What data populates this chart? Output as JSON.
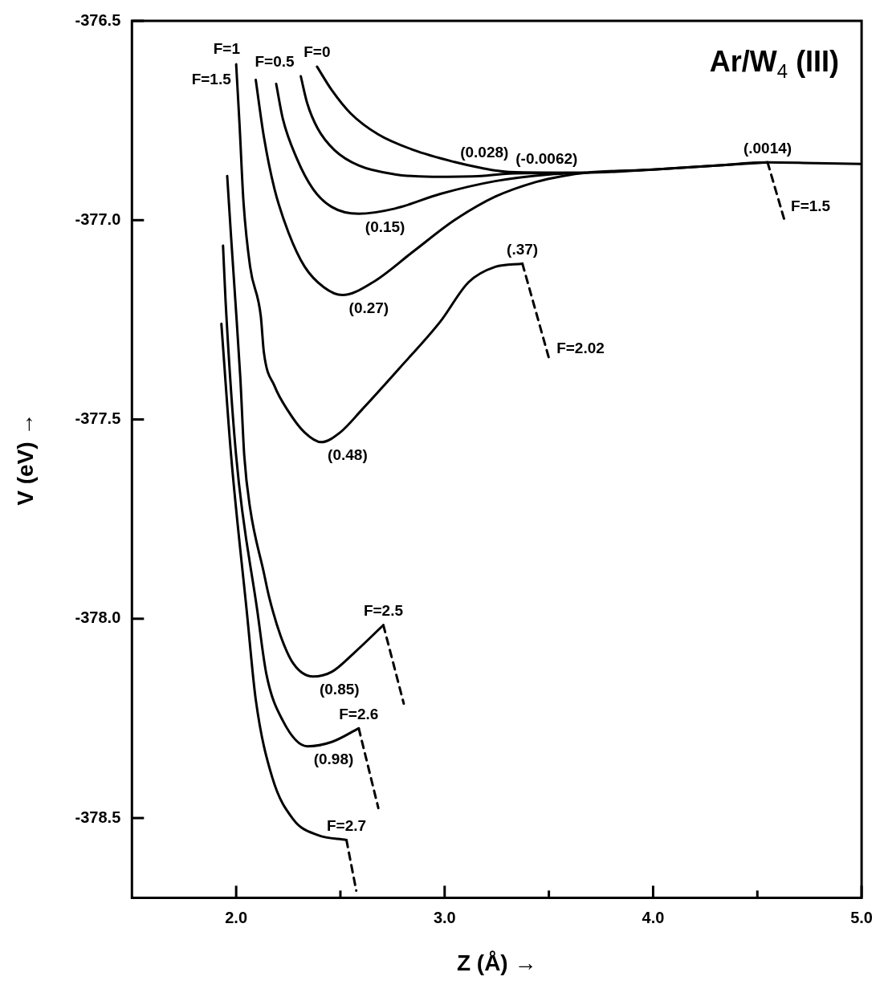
{
  "chart_data": {
    "type": "line",
    "title": "Ar/W$_{4}$ (III)",
    "xlabel": "Z (Å) →",
    "ylabel": "V (eV) →",
    "xlim": [
      1.5,
      5.0
    ],
    "ylim": [
      -378.7,
      -376.5
    ],
    "xticks": [
      {
        "value": 2,
        "label": "2.0"
      },
      {
        "value": 2.5,
        "label": null
      },
      {
        "value": 3,
        "label": "3.0"
      },
      {
        "value": 3.5,
        "label": null
      },
      {
        "value": 4,
        "label": "4.0"
      },
      {
        "value": 4.5,
        "label": null
      },
      {
        "value": 5,
        "label": "5.0"
      }
    ],
    "yticks": [
      -376.5,
      {
        "value": -377,
        "label": "-377.0"
      },
      -377.5,
      {
        "value": -378,
        "label": "-378.0"
      },
      -378.5
    ],
    "marker": "none",
    "line_style": "solid",
    "series": [
      {
        "color": "#000000",
        "x": [
          2.388,
          2.459,
          2.549,
          2.682,
          2.851,
          3.047,
          3.176,
          3.31,
          3.675,
          4.0,
          4.302,
          4.549,
          4.773,
          5.0
        ],
        "values": [
          -376.615,
          -376.674,
          -376.732,
          -376.785,
          -376.824,
          -376.854,
          -376.869,
          -376.879,
          -376.881,
          -376.873,
          -376.863,
          -376.855,
          -376.857,
          -376.859
        ]
      },
      {
        "color": "#000000",
        "x": [
          2.31,
          2.341,
          2.392,
          2.471,
          2.588,
          2.761,
          2.941,
          3.176,
          3.31,
          3.675
        ],
        "values": [
          -376.639,
          -376.707,
          -376.771,
          -376.824,
          -376.863,
          -376.885,
          -376.891,
          -376.889,
          -376.883,
          -376.881
        ]
      },
      {
        "color": "#000000",
        "x": [
          2.192,
          2.224,
          2.29,
          2.369,
          2.459,
          2.588,
          2.761,
          2.98,
          3.243,
          3.506,
          3.675
        ],
        "values": [
          -376.658,
          -376.746,
          -376.844,
          -376.922,
          -376.967,
          -376.984,
          -376.971,
          -376.934,
          -376.902,
          -376.885,
          -376.881
        ]
      },
      {
        "color": "#000000",
        "x": [
          2.094,
          2.133,
          2.184,
          2.251,
          2.329,
          2.42,
          2.51,
          2.655,
          2.851,
          3.047,
          3.243,
          3.439,
          3.569,
          3.675,
          4.0,
          4.302,
          4.549
        ],
        "values": [
          -376.648,
          -376.791,
          -376.922,
          -377.031,
          -377.117,
          -377.168,
          -377.188,
          -377.156,
          -377.078,
          -377.0,
          -376.941,
          -376.904,
          -376.889,
          -376.881,
          -376.873,
          -376.863,
          -376.855
        ]
      },
      {
        "color": "#000000",
        "line_style": "dashed",
        "x": [
          4.549,
          4.63
        ],
        "values": [
          -376.855,
          -377.0
        ]
      },
      {
        "color": "#000000",
        "x": [
          2.0,
          2.016,
          2.035,
          2.067,
          2.118,
          2.133,
          2.184,
          2.251,
          2.329,
          2.408,
          2.498,
          2.604,
          2.784,
          2.98,
          3.114,
          3.243,
          3.373
        ],
        "values": [
          -376.609,
          -376.758,
          -376.953,
          -377.117,
          -377.24,
          -377.332,
          -377.416,
          -377.48,
          -377.533,
          -377.557,
          -377.533,
          -377.475,
          -377.371,
          -377.254,
          -377.156,
          -377.117,
          -377.109
        ]
      },
      {
        "color": "#000000",
        "line_style": "dashed",
        "x": [
          3.373,
          3.506
        ],
        "values": [
          -377.109,
          -377.357
        ]
      },
      {
        "color": "#000000",
        "x": [
          1.957,
          1.976,
          1.996,
          2.02,
          2.039,
          2.067,
          2.133,
          2.157,
          2.212,
          2.275,
          2.369,
          2.459,
          2.565,
          2.706
        ],
        "values": [
          -376.889,
          -377.045,
          -377.201,
          -377.396,
          -377.592,
          -377.723,
          -377.885,
          -377.943,
          -378.041,
          -378.113,
          -378.145,
          -378.133,
          -378.086,
          -378.016
        ]
      },
      {
        "color": "#000000",
        "line_style": "dashed",
        "x": [
          2.706,
          2.804
        ],
        "values": [
          -378.016,
          -378.213
        ]
      },
      {
        "color": "#000000",
        "x": [
          1.937,
          1.949,
          2.0,
          2.102,
          2.145,
          2.224,
          2.341,
          2.459,
          2.588
        ],
        "values": [
          -377.064,
          -377.201,
          -377.592,
          -377.982,
          -378.139,
          -378.256,
          -378.32,
          -378.309,
          -378.275
        ]
      },
      {
        "color": "#000000",
        "line_style": "dashed",
        "x": [
          2.588,
          2.682
        ],
        "values": [
          -378.275,
          -378.475
        ]
      },
      {
        "color": "#000000",
        "x": [
          1.929,
          1.976,
          2.051,
          2.094,
          2.173,
          2.275,
          2.392,
          2.529
        ],
        "values": [
          -377.26,
          -377.592,
          -377.982,
          -378.203,
          -378.398,
          -378.504,
          -378.543,
          -378.555
        ]
      },
      {
        "color": "#000000",
        "line_style": "dashed",
        "x": [
          2.529,
          2.576
        ],
        "values": [
          -378.555,
          -378.682
        ]
      }
    ],
    "annotations": [
      {
        "text": "F=0",
        "x": 2.388,
        "y": -376.615
      },
      {
        "text": "F=0.5",
        "x": 2.31,
        "y": -376.639
      },
      {
        "text": "F=1",
        "x": 2.192,
        "y": -376.658
      },
      {
        "text": "F=1.5",
        "x": 2.094,
        "y": -376.648
      },
      {
        "text": "(0.028)",
        "x": 2.941,
        "y": -376.891
      },
      {
        "text": "(-0.0062)",
        "x": 3.31,
        "y": -376.883
      },
      {
        "text": "(0.15)",
        "x": 2.588,
        "y": -376.984
      },
      {
        "text": "(.0014)",
        "x": 4.549,
        "y": -376.855
      },
      {
        "text": "F=1.5",
        "x": 4.63,
        "y": -377.0
      },
      {
        "text": "(0.27)",
        "x": 2.51,
        "y": -377.188
      },
      {
        "text": "(.37)",
        "x": 3.373,
        "y": -377.109
      },
      {
        "text": "F=2.02",
        "x": 3.506,
        "y": -377.357
      },
      {
        "text": "(0.48)",
        "x": 2.408,
        "y": -377.557
      },
      {
        "text": "(0.85)",
        "x": 2.369,
        "y": -378.145
      },
      {
        "text": "F=2.5",
        "x": 2.706,
        "y": -378.016
      },
      {
        "text": "(0.98)",
        "x": 2.341,
        "y": -378.32
      },
      {
        "text": "F=2.6",
        "x": 2.588,
        "y": -378.275
      },
      {
        "text": "F=2.7",
        "x": 2.529,
        "y": -378.555
      }
    ]
  }
}
